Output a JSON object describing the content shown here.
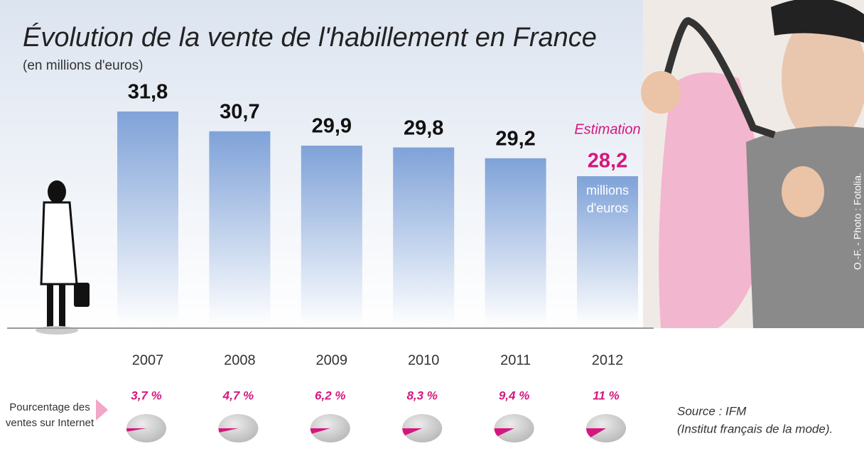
{
  "chart_data": {
    "type": "bar",
    "title": "Évolution de la vente de l'habillement en France",
    "subtitle": "(en millions d'euros)",
    "categories": [
      "2007",
      "2008",
      "2009",
      "2010",
      "2011",
      "2012"
    ],
    "values": [
      31.8,
      30.7,
      29.9,
      29.8,
      29.2,
      28.2
    ],
    "value_labels": [
      "31,8",
      "30,7",
      "29,9",
      "29,8",
      "29,2",
      "28,2"
    ],
    "color": "#7fa2d8",
    "highlight_color": "#d6167e",
    "estimate_annotation": "Estimation",
    "estimate_unit": "millions d'euros",
    "internet_share": {
      "type": "pie",
      "label": "Pourcentage des ventes sur Internet",
      "values": [
        3.7,
        4.7,
        6.2,
        8.3,
        9.4,
        11
      ],
      "value_labels": [
        "3,7 %",
        "4,7 %",
        "6,2 %",
        "8,3 %",
        "9,4 %",
        "11 %"
      ],
      "color": "#d6167e"
    },
    "source": "Source : IFM",
    "source_detail": "(Institut français de la mode).",
    "credit": "O.-F. - Photo : Fotolia."
  }
}
